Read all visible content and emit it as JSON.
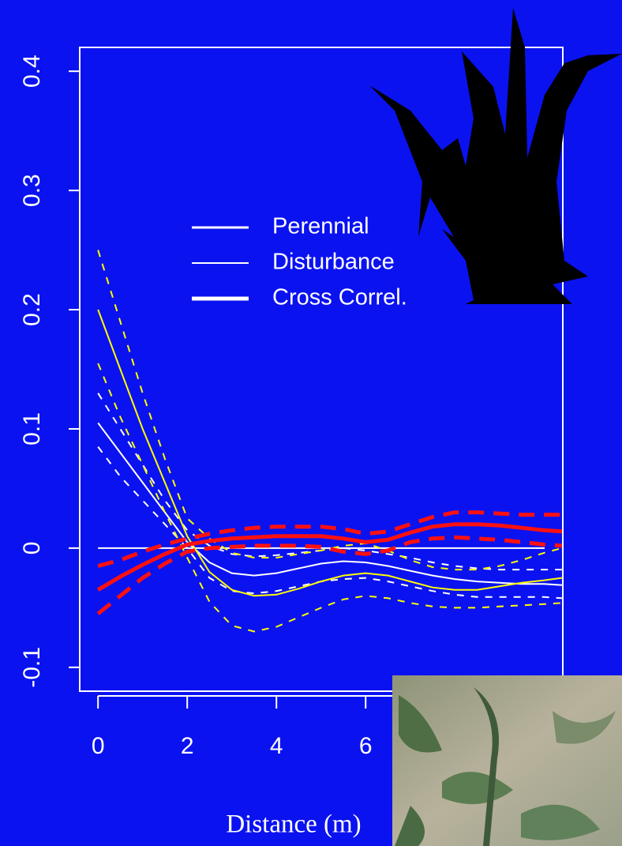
{
  "chart_data": {
    "type": "line",
    "x_label": "Distance (m)",
    "xlim": [
      -0.41,
      10.42
    ],
    "ylim": [
      -0.12,
      0.42
    ],
    "xticks": [
      0,
      2,
      4,
      6
    ],
    "yticks": [
      -0.1,
      0.0,
      0.1,
      0.2,
      0.3,
      0.4
    ],
    "reference_line": 0,
    "legend_color": "#ffffff",
    "x": [
      0,
      0.5,
      1,
      1.5,
      2,
      2.5,
      3,
      3.5,
      4,
      4.5,
      5,
      5.5,
      6,
      6.5,
      7,
      7.5,
      8,
      8.5,
      9,
      9.5,
      10,
      10.4
    ],
    "series": [
      {
        "name": "Perennial",
        "color": "#ffffff",
        "width": 2,
        "legend_width": 3,
        "values": [
          0.105,
          0.08,
          0.055,
          0.03,
          0.005,
          -0.012,
          -0.021,
          -0.023,
          -0.021,
          -0.017,
          -0.013,
          -0.011,
          -0.012,
          -0.015,
          -0.019,
          -0.023,
          -0.026,
          -0.028,
          -0.029,
          -0.03,
          -0.03,
          -0.031
        ],
        "upper": [
          0.13,
          0.1,
          0.07,
          0.04,
          0.015,
          0.002,
          -0.005,
          -0.007,
          -0.006,
          -0.004,
          -0.002,
          0.0,
          -0.002,
          -0.005,
          -0.008,
          -0.012,
          -0.015,
          -0.017,
          -0.018,
          -0.018,
          -0.018,
          -0.018
        ],
        "lower": [
          0.085,
          0.06,
          0.04,
          0.02,
          0.0,
          -0.025,
          -0.036,
          -0.038,
          -0.036,
          -0.032,
          -0.028,
          -0.026,
          -0.025,
          -0.028,
          -0.032,
          -0.036,
          -0.039,
          -0.041,
          -0.041,
          -0.041,
          -0.041,
          -0.042
        ]
      },
      {
        "name": "Disturbance",
        "color": "#ffff00",
        "width": 2,
        "legend_width": 2,
        "values": [
          0.2,
          0.15,
          0.1,
          0.055,
          0.01,
          -0.02,
          -0.035,
          -0.04,
          -0.039,
          -0.034,
          -0.028,
          -0.023,
          -0.021,
          -0.023,
          -0.028,
          -0.033,
          -0.035,
          -0.035,
          -0.032,
          -0.029,
          -0.027,
          -0.025
        ],
        "upper": [
          0.25,
          0.19,
          0.13,
          0.075,
          0.025,
          0.008,
          -0.004,
          -0.008,
          -0.008,
          -0.005,
          -0.002,
          0.002,
          0.004,
          -0.002,
          -0.01,
          -0.016,
          -0.018,
          -0.018,
          -0.015,
          -0.01,
          -0.004,
          0.0
        ],
        "lower": [
          0.155,
          0.11,
          0.07,
          0.03,
          -0.008,
          -0.045,
          -0.065,
          -0.07,
          -0.066,
          -0.058,
          -0.05,
          -0.043,
          -0.04,
          -0.042,
          -0.046,
          -0.049,
          -0.05,
          -0.05,
          -0.049,
          -0.048,
          -0.047,
          -0.046
        ]
      },
      {
        "name": "Cross Correl.",
        "color": "#ff1010",
        "width": 5,
        "legend_width": 5,
        "values": [
          -0.035,
          -0.024,
          -0.014,
          -0.005,
          0.003,
          0.006,
          0.008,
          0.009,
          0.01,
          0.01,
          0.01,
          0.008,
          0.005,
          0.007,
          0.013,
          0.018,
          0.02,
          0.02,
          0.019,
          0.017,
          0.015,
          0.014
        ],
        "upper": [
          -0.015,
          -0.01,
          -0.003,
          0.003,
          0.008,
          0.012,
          0.015,
          0.017,
          0.018,
          0.018,
          0.018,
          0.016,
          0.012,
          0.014,
          0.02,
          0.026,
          0.03,
          0.03,
          0.029,
          0.028,
          0.028,
          0.028
        ],
        "lower": [
          -0.055,
          -0.04,
          -0.025,
          -0.013,
          -0.003,
          0.0,
          0.001,
          0.002,
          0.002,
          0.002,
          0.001,
          -0.003,
          -0.005,
          -0.002,
          0.005,
          0.008,
          0.009,
          0.008,
          0.007,
          0.005,
          0.003,
          0.002
        ]
      }
    ]
  }
}
